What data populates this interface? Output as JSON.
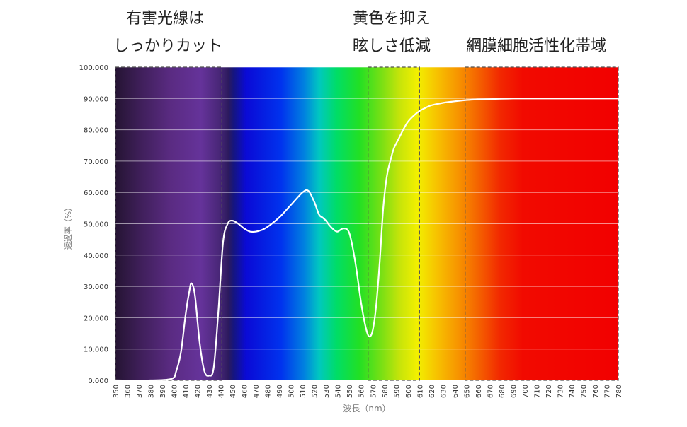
{
  "annotations": [
    {
      "id": "uv",
      "lines": [
        "有害光線は",
        "しっかりカット"
      ]
    },
    {
      "id": "yellow",
      "lines": [
        "黄色を抑え",
        "眩しさ低減"
      ]
    },
    {
      "id": "retina",
      "lines": [
        "網膜細胞活性化帯域"
      ]
    }
  ],
  "chart_data": {
    "type": "line",
    "title": "",
    "xlabel": "波長（nm）",
    "ylabel": "透過率（%）",
    "xlim": [
      350,
      780
    ],
    "ylim": [
      0,
      100
    ],
    "x_ticks": [
      350,
      360,
      370,
      380,
      390,
      400,
      410,
      420,
      430,
      440,
      450,
      460,
      470,
      480,
      490,
      500,
      510,
      520,
      530,
      540,
      550,
      560,
      570,
      580,
      590,
      600,
      610,
      620,
      630,
      640,
      650,
      660,
      670,
      680,
      690,
      700,
      710,
      720,
      730,
      740,
      750,
      760,
      770,
      780
    ],
    "y_ticks": [
      "0.000",
      "10.000",
      "20.000",
      "30.000",
      "40.000",
      "50.000",
      "60.000",
      "70.000",
      "80.000",
      "90.000",
      "100.000"
    ],
    "grid": true,
    "background": "visible light spectrum gradient (violet to red)",
    "line_color": "#ffffff",
    "region_boundaries_nm": [
      350,
      441,
      566,
      610,
      649,
      780
    ],
    "series": [
      {
        "name": "",
        "x": [
          350,
          380,
          398,
          402,
          406,
          410,
          413,
          415,
          418,
          422,
          426,
          430,
          434,
          438,
          442,
          446,
          450,
          455,
          460,
          465,
          470,
          475,
          480,
          490,
          500,
          510,
          515,
          520,
          524,
          527,
          530,
          533,
          537,
          540,
          545,
          550,
          555,
          560,
          564,
          567,
          570,
          573,
          576,
          579,
          582,
          585,
          588,
          592,
          596,
          600,
          605,
          610,
          615,
          620,
          630,
          640,
          650,
          660,
          670,
          680,
          690,
          700,
          720,
          740,
          760,
          780
        ],
        "y": [
          0,
          0,
          0.5,
          3,
          9,
          21,
          28,
          31,
          27,
          12,
          3,
          1.5,
          4,
          22,
          44,
          50,
          51,
          50,
          48.5,
          47.5,
          47.5,
          48,
          49,
          52,
          56,
          60,
          60.5,
          57,
          53,
          52,
          51,
          49.5,
          48,
          47.5,
          48.5,
          47,
          38,
          25,
          17,
          14,
          16,
          24,
          38,
          55,
          65,
          70,
          74,
          77,
          80,
          82.5,
          84.5,
          86,
          87,
          87.8,
          88.6,
          89.1,
          89.5,
          89.7,
          89.8,
          89.9,
          90,
          90,
          90,
          90,
          90,
          90
        ]
      }
    ]
  }
}
